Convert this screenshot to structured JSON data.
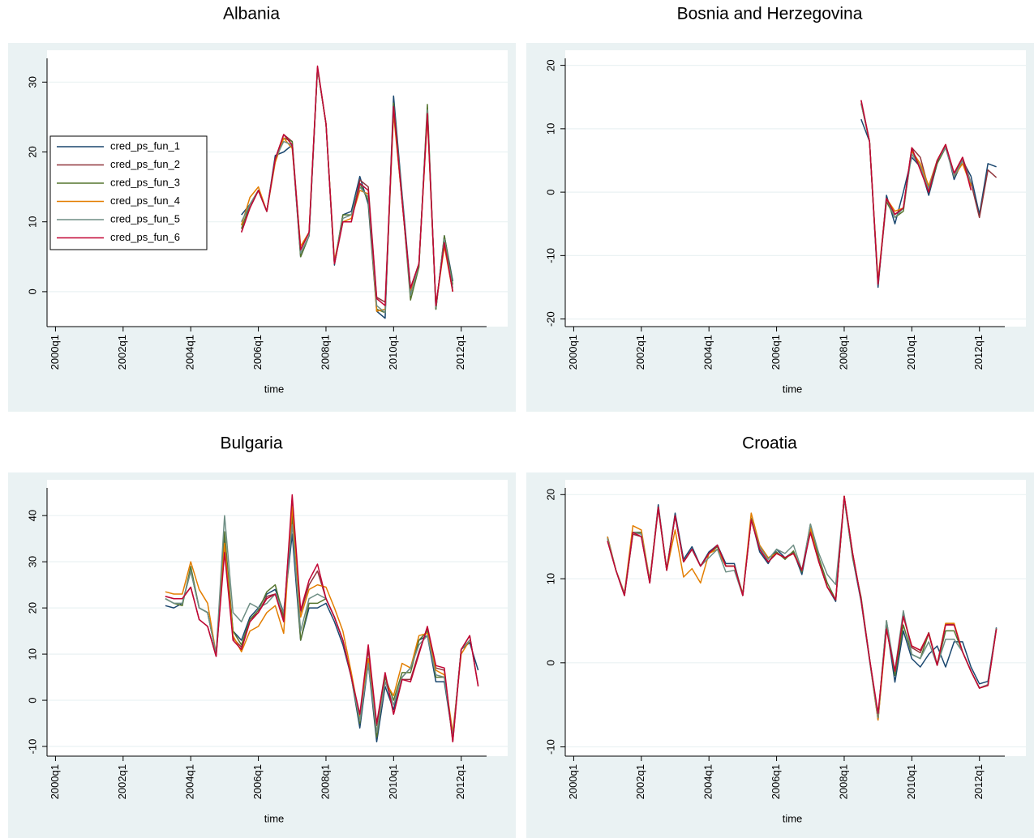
{
  "chart_data": [
    {
      "type": "line",
      "title": "Albania",
      "xlabel": "time",
      "legend": "upper left",
      "x": [
        "2005q3",
        "2005q4",
        "2006q1",
        "2006q2",
        "2006q3",
        "2006q4",
        "2007q1",
        "2007q2",
        "2007q3",
        "2007q4",
        "2008q1",
        "2008q2",
        "2008q3",
        "2008q4",
        "2009q1",
        "2009q2",
        "2009q3",
        "2009q4",
        "2010q1",
        "2010q2",
        "2010q3",
        "2010q4",
        "2011q1",
        "2011q2",
        "2011q3",
        "2011q4"
      ],
      "xlim": [
        "1999q4",
        "2012q4"
      ],
      "xticks": [
        "2000q1",
        "2002q1",
        "2004q1",
        "2006q1",
        "2008q1",
        "2010q1",
        "2012q1"
      ],
      "ylim": [
        -5,
        33.4
      ],
      "yticks": [
        0,
        10,
        20,
        30
      ],
      "series": [
        {
          "name": "cred_ps_fun_1",
          "color": "#1a476f",
          "values": [
            11,
            12.5,
            14.5,
            11.5,
            19.5,
            20,
            21,
            5,
            8,
            32,
            24,
            3.8,
            11,
            11.5,
            16.5,
            12.5,
            -2.8,
            -3.8,
            28,
            14,
            0.5,
            4,
            26,
            -2.5,
            8,
            1.5
          ]
        },
        {
          "name": "cred_ps_fun_2",
          "color": "#90353b",
          "values": [
            8.5,
            12,
            14.5,
            11.5,
            19,
            22.5,
            21.5,
            6,
            8.5,
            32,
            24,
            4,
            10,
            10,
            16,
            15,
            -0.8,
            -1.5,
            26,
            13,
            0.5,
            4,
            25.5,
            -2,
            7,
            0
          ]
        },
        {
          "name": "cred_ps_fun_3",
          "color": "#55752f",
          "values": [
            9,
            12.5,
            14.5,
            11.5,
            19,
            22,
            21.5,
            5,
            8,
            32,
            24,
            4,
            11,
            11,
            15.5,
            13,
            -2.5,
            -3,
            27,
            13.5,
            -1.2,
            3.5,
            26.8,
            -2.5,
            8,
            1
          ]
        },
        {
          "name": "cred_ps_fun_4",
          "color": "#e37e00",
          "values": [
            9.5,
            13.5,
            15,
            11.5,
            18.5,
            22,
            20.5,
            6.5,
            8.5,
            32,
            24,
            4.5,
            10,
            10.5,
            14.5,
            14,
            -2.8,
            -2.5,
            25.5,
            13,
            0,
            4,
            25,
            -2,
            6.5,
            0
          ]
        },
        {
          "name": "cred_ps_fun_5",
          "color": "#6e8e84",
          "values": [
            10,
            12.5,
            14.5,
            11.5,
            19,
            21.5,
            21,
            5.5,
            8,
            32,
            24,
            4,
            10.5,
            11,
            15,
            13.5,
            -2,
            -3,
            26.5,
            13.5,
            -0.5,
            4,
            26,
            -2.2,
            7.5,
            0.5
          ]
        },
        {
          "name": "cred_ps_fun_6",
          "color": "#c10534",
          "values": [
            8.5,
            12,
            14.5,
            11.5,
            19,
            22.5,
            21,
            6,
            8.5,
            32.3,
            24,
            4,
            10,
            10,
            15.5,
            14.5,
            -1,
            -2,
            26.5,
            13,
            0.5,
            4,
            25.5,
            -2,
            7,
            0
          ]
        }
      ]
    },
    {
      "type": "line",
      "title": "Bosnia and Herzegovina",
      "xlabel": "time",
      "x": [
        "2008q3",
        "2008q4",
        "2009q1",
        "2009q2",
        "2009q3",
        "2009q4",
        "2010q1",
        "2010q2",
        "2010q3",
        "2010q4",
        "2011q1",
        "2011q2",
        "2011q3",
        "2011q4",
        "2012q1",
        "2012q2",
        "2012q3"
      ],
      "xlim": [
        "1999q4",
        "2012q4"
      ],
      "xticks": [
        "2000q1",
        "2002q1",
        "2004q1",
        "2006q1",
        "2008q1",
        "2010q1",
        "2012q1"
      ],
      "ylim": [
        -21.2,
        21.1
      ],
      "yticks": [
        -20,
        -10,
        0,
        10,
        20
      ],
      "series": [
        {
          "color": "#1a476f",
          "values": [
            11.5,
            8,
            -15,
            -0.5,
            -5,
            0,
            5.5,
            4,
            -0.5,
            4.5,
            7.5,
            2,
            5,
            2.5,
            -3.5,
            4.5,
            4
          ]
        },
        {
          "color": "#90353b",
          "values": [
            14.5,
            8,
            -14.5,
            -1,
            -3.5,
            -2.5,
            7,
            5.5,
            0.5,
            5,
            7.5,
            2.5,
            5.5,
            1.5,
            -4,
            3.5,
            2.3
          ]
        },
        {
          "color": "#55752f",
          "values": [
            14,
            8,
            -14.5,
            -1.5,
            -4,
            -3,
            6.5,
            4,
            0,
            4.5,
            7,
            2.5,
            5,
            1,
            null,
            null,
            null
          ]
        },
        {
          "color": "#e37e00",
          "values": [
            14,
            8,
            -14,
            -1,
            -3,
            -2.5,
            6.5,
            4.5,
            1,
            5,
            7.5,
            2.5,
            4.5,
            1,
            null,
            null,
            null
          ]
        },
        {
          "color": "#6e8e84",
          "values": [
            14,
            8,
            -14.5,
            -1,
            -4,
            -2.5,
            6,
            4,
            0.5,
            5,
            7,
            2.5,
            5,
            1.5,
            null,
            null,
            null
          ]
        },
        {
          "color": "#c10534",
          "values": [
            14.5,
            8,
            -14.5,
            -1,
            -3.5,
            -2.5,
            7,
            3.5,
            0,
            5,
            7.5,
            3,
            5.5,
            0.3,
            null,
            null,
            null
          ]
        }
      ]
    },
    {
      "type": "line",
      "title": "Bulgaria",
      "xlabel": "time",
      "x": [
        "2003q2",
        "2003q3",
        "2003q4",
        "2004q1",
        "2004q2",
        "2004q3",
        "2004q4",
        "2005q1",
        "2005q2",
        "2005q3",
        "2005q4",
        "2006q1",
        "2006q2",
        "2006q3",
        "2006q4",
        "2007q1",
        "2007q2",
        "2007q3",
        "2007q4",
        "2008q1",
        "2008q2",
        "2008q3",
        "2008q4",
        "2009q1",
        "2009q2",
        "2009q3",
        "2009q4",
        "2010q1",
        "2010q2",
        "2010q3",
        "2010q4",
        "2011q1",
        "2011q2",
        "2011q3",
        "2011q4",
        "2012q1",
        "2012q2",
        "2012q3"
      ],
      "xlim": [
        "1999q4",
        "2012q4"
      ],
      "xticks": [
        "2000q1",
        "2002q1",
        "2004q1",
        "2006q1",
        "2008q1",
        "2010q1",
        "2012q1"
      ],
      "ylim": [
        -12.1,
        46
      ],
      "yticks": [
        -10,
        0,
        10,
        20,
        30,
        40
      ],
      "series": [
        {
          "color": "#1a476f",
          "values": [
            20.5,
            20,
            21,
            28,
            20,
            19,
            10,
            35,
            15,
            13,
            18,
            20,
            23,
            24,
            19,
            36,
            13,
            20,
            20,
            21,
            17,
            12,
            5,
            -6,
            8,
            -9,
            3,
            -2,
            5,
            7,
            13,
            14,
            4,
            4,
            -8,
            11,
            12.5,
            6.5
          ]
        },
        {
          "color": "#90353b",
          "values": [
            22.5,
            22,
            22,
            24.5,
            17.5,
            16,
            9.5,
            33,
            13.5,
            11.5,
            17.5,
            19,
            22.5,
            23,
            17.5,
            43,
            19,
            25,
            28,
            22,
            18,
            13,
            5,
            -3.5,
            11,
            -5.5,
            5.5,
            -3,
            4.5,
            4.5,
            10.5,
            15.5,
            7,
            6.5,
            -9,
            11,
            14,
            3.2
          ]
        },
        {
          "color": "#55752f",
          "values": [
            22,
            21,
            20.5,
            29,
            20,
            19,
            10,
            36.5,
            15,
            12,
            17.5,
            19.5,
            23.5,
            25,
            18,
            40,
            13,
            21,
            21,
            22,
            18,
            13,
            5,
            -5,
            9,
            -8,
            5,
            0,
            6,
            6,
            13,
            15,
            5,
            5,
            -8,
            11,
            13,
            null
          ]
        },
        {
          "color": "#e37e00",
          "values": [
            23.5,
            23,
            23,
            30,
            24,
            21,
            10,
            34,
            14,
            10.5,
            15,
            16,
            19,
            20.5,
            14.5,
            42,
            18,
            24,
            25,
            24.5,
            20,
            15,
            6,
            -4,
            9,
            -7,
            4,
            1,
            8,
            7,
            14,
            14.5,
            6.5,
            5.5,
            -7,
            10,
            13,
            null
          ]
        },
        {
          "color": "#6e8e84",
          "values": [
            22,
            21,
            21,
            28,
            20,
            19,
            10,
            40,
            19,
            17,
            21,
            20,
            21,
            23,
            19,
            38,
            15,
            22,
            23,
            22,
            18,
            13,
            5,
            -4.5,
            8,
            -7,
            4,
            -1,
            5,
            7,
            12,
            14,
            5.5,
            5,
            -8,
            11,
            13,
            null
          ]
        },
        {
          "color": "#c10534",
          "values": [
            22.5,
            22,
            22,
            24.5,
            17.5,
            16,
            9.5,
            32,
            13,
            11,
            17,
            19,
            22,
            23,
            17,
            44.5,
            19.5,
            26,
            29.5,
            22,
            18,
            13,
            5,
            -3,
            12,
            -5,
            6,
            -3,
            4.5,
            4,
            10,
            16,
            7.5,
            7,
            -9,
            11,
            14,
            3
          ]
        }
      ]
    },
    {
      "type": "line",
      "title": "Croatia",
      "xlabel": "time",
      "x": [
        "2001q1",
        "2001q2",
        "2001q3",
        "2001q4",
        "2002q1",
        "2002q2",
        "2002q3",
        "2002q4",
        "2003q1",
        "2003q2",
        "2003q3",
        "2003q4",
        "2004q1",
        "2004q2",
        "2004q3",
        "2004q4",
        "2005q1",
        "2005q2",
        "2005q3",
        "2005q4",
        "2006q1",
        "2006q2",
        "2006q3",
        "2006q4",
        "2007q1",
        "2007q2",
        "2007q3",
        "2007q4",
        "2008q1",
        "2008q2",
        "2008q3",
        "2008q4",
        "2009q1",
        "2009q2",
        "2009q3",
        "2009q4",
        "2010q1",
        "2010q2",
        "2010q3",
        "2010q4",
        "2011q1",
        "2011q2",
        "2011q3",
        "2011q4",
        "2012q1",
        "2012q2",
        "2012q3"
      ],
      "xlim": [
        "1999q4",
        "2012q4"
      ],
      "xticks": [
        "2000q1",
        "2002q1",
        "2004q1",
        "2006q1",
        "2008q1",
        "2010q1",
        "2012q1"
      ],
      "ylim": [
        -11.1,
        20.8
      ],
      "yticks": [
        -10,
        0,
        10,
        20
      ],
      "series": [
        {
          "color": "#1a476f",
          "values": [
            15,
            11,
            8,
            15.5,
            15.5,
            9.5,
            18.8,
            11,
            17.8,
            12.3,
            13.8,
            11.5,
            13.2,
            14,
            11.8,
            11.8,
            8,
            17.2,
            13.2,
            11.8,
            13.5,
            12.5,
            13.2,
            10.5,
            15.8,
            12,
            9,
            7.3,
            19.8,
            12.5,
            7.3,
            0.3,
            -6.8,
            4.5,
            -2.3,
            3.8,
            0.5,
            -0.5,
            1,
            2,
            -0.5,
            2.5,
            2.5,
            -0.5,
            -2.5,
            -2.2,
            4.2
          ]
        },
        {
          "color": "#90353b",
          "values": [
            14.5,
            11,
            8,
            15.3,
            15,
            9.5,
            18.3,
            11,
            17.5,
            12,
            13.5,
            11.5,
            13,
            14,
            11.5,
            11.5,
            8,
            17,
            13.5,
            12,
            13,
            12.5,
            13,
            11,
            15.5,
            12,
            9,
            7.5,
            19.8,
            13,
            7.5,
            0.5,
            -6.3,
            4.2,
            -1.2,
            5.8,
            1.8,
            1.2,
            3.6,
            -0.2,
            4.6,
            4.6,
            1.3,
            -1,
            -3,
            -2.6,
            4.1
          ]
        },
        {
          "color": "#55752f",
          "values": [
            14.8,
            11,
            8.2,
            15.5,
            15.5,
            9.8,
            18.5,
            11.2,
            17.5,
            12,
            13.5,
            11.5,
            13,
            13.8,
            11.5,
            11.5,
            8.2,
            17.2,
            13.5,
            12,
            13.2,
            12.3,
            13.3,
            10.8,
            16.5,
            12.5,
            9.5,
            7.5,
            19.5,
            12.5,
            7.8,
            0.5,
            -6.5,
            5,
            -1.5,
            4.5,
            1,
            0.5,
            3.5,
            -0.3,
            3.8,
            3.8,
            1.3,
            -1,
            -3,
            -2.6,
            4.1
          ]
        },
        {
          "color": "#e37e00",
          "values": [
            15,
            11,
            8.3,
            16.3,
            15.8,
            9.8,
            18.5,
            11,
            15.8,
            10.2,
            11.2,
            9.5,
            13,
            13.5,
            11.5,
            11.5,
            8,
            17.8,
            14,
            12.5,
            13,
            12.5,
            13,
            11,
            16,
            12,
            9,
            7.5,
            19.8,
            13,
            7.5,
            0.5,
            -6.8,
            4,
            -1,
            5.5,
            2,
            1.5,
            3.5,
            -0.3,
            4.7,
            4.7,
            1.3,
            -1,
            -3,
            -2.7,
            4
          ]
        },
        {
          "color": "#6e8e84",
          "values": [
            14.8,
            11,
            8.2,
            15.5,
            15.3,
            9.7,
            18.5,
            11,
            17.5,
            12,
            13.5,
            11.5,
            12.5,
            13.5,
            10.8,
            11,
            8,
            17,
            13.8,
            12.3,
            13.5,
            13,
            14,
            11,
            16.5,
            13,
            10.5,
            9.3,
            19.5,
            12.8,
            7.5,
            0.5,
            -6.5,
            5,
            -1,
            6.2,
            1,
            0.5,
            2.5,
            -0.3,
            2.8,
            2.8,
            1.3,
            -1,
            -3,
            -2.6,
            4.1
          ]
        },
        {
          "color": "#c10534",
          "values": [
            14.5,
            11,
            8,
            15.5,
            15,
            9.5,
            18.5,
            11,
            17.5,
            12,
            13.5,
            11.5,
            13,
            14,
            11.5,
            11.5,
            8,
            17,
            13.5,
            12,
            13,
            12.5,
            13,
            11,
            15.5,
            12,
            9,
            7.5,
            19.8,
            13,
            7.5,
            0.5,
            -6,
            4,
            -1,
            5.5,
            2,
            1.5,
            3.5,
            -0.3,
            4.5,
            4.5,
            1.3,
            -1,
            -3,
            -2.7,
            4
          ]
        }
      ]
    }
  ]
}
